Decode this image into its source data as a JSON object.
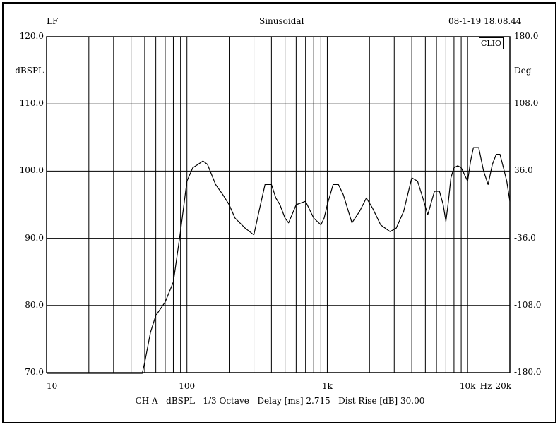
{
  "header": {
    "left": "LF",
    "center": "Sinusoidal",
    "right": "08-1-19 18.08.44"
  },
  "badge": "CLIO",
  "footer": "CH A   dBSPL   1/3 Octave   Delay [ms] 2.715   Dist Rise [dB] 30.00",
  "chart_data": {
    "type": "line",
    "x_scale": "log",
    "xlim": [
      10,
      20000
    ],
    "ylim": [
      70,
      120
    ],
    "y2lim": [
      -180,
      180
    ],
    "ylabel": "dBSPL",
    "y2label": "Deg",
    "xunit": "Hz",
    "grid": true,
    "y_ticks": [
      "120.0",
      "110.0",
      "100.0",
      "90.0",
      "80.0",
      "70.0"
    ],
    "y_tick_values": [
      120,
      110,
      100,
      90,
      80,
      70
    ],
    "y2_ticks": [
      "180.0",
      "108.0",
      "36.0",
      "-36.0",
      "-108.0",
      "-180.0"
    ],
    "x_ticks": [
      {
        "label": "10",
        "value": 10
      },
      {
        "label": "100",
        "value": 100
      },
      {
        "label": "1k",
        "value": 1000
      },
      {
        "label": "10k",
        "value": 10000
      },
      {
        "label": "Hz",
        "value": 13500
      },
      {
        "label": "20k",
        "value": 20000
      }
    ],
    "series": [
      {
        "x": [
          10,
          40,
          48,
          50,
          55,
          60,
          70,
          80,
          90,
          100,
          110,
          120,
          130,
          140,
          160,
          180,
          200,
          220,
          260,
          300,
          330,
          360,
          400,
          430,
          460,
          500,
          530,
          600,
          700,
          800,
          900,
          950,
          1000,
          1100,
          1200,
          1300,
          1500,
          1700,
          1900,
          2100,
          2400,
          2800,
          3100,
          3500,
          4000,
          4400,
          4800,
          5200,
          5800,
          6300,
          6700,
          7000,
          7300,
          7600,
          8000,
          8500,
          9000,
          10000,
          10500,
          11000,
          12000,
          13000,
          14000,
          15000,
          16000,
          17000,
          18000,
          19000,
          20000
        ],
        "y": [
          69.9,
          69.9,
          69.9,
          71.5,
          76.0,
          78.5,
          80.5,
          83.5,
          91.0,
          98.5,
          100.5,
          101.0,
          101.5,
          101.0,
          98.0,
          96.5,
          95.0,
          93.0,
          91.5,
          90.5,
          94.5,
          98.0,
          98.0,
          96.0,
          95.0,
          93.0,
          92.3,
          95.0,
          95.5,
          93.0,
          92.0,
          93.0,
          95.0,
          98.0,
          98.0,
          96.5,
          92.3,
          94.0,
          96.0,
          94.5,
          92.0,
          91.0,
          91.5,
          94.0,
          99.0,
          98.5,
          96.0,
          93.5,
          97.0,
          97.0,
          95.0,
          92.5,
          95.5,
          99.0,
          100.5,
          100.8,
          100.5,
          98.5,
          101.5,
          103.5,
          103.5,
          100.0,
          98.0,
          101.0,
          102.5,
          102.5,
          100.5,
          98.5,
          95.5
        ]
      }
    ]
  }
}
